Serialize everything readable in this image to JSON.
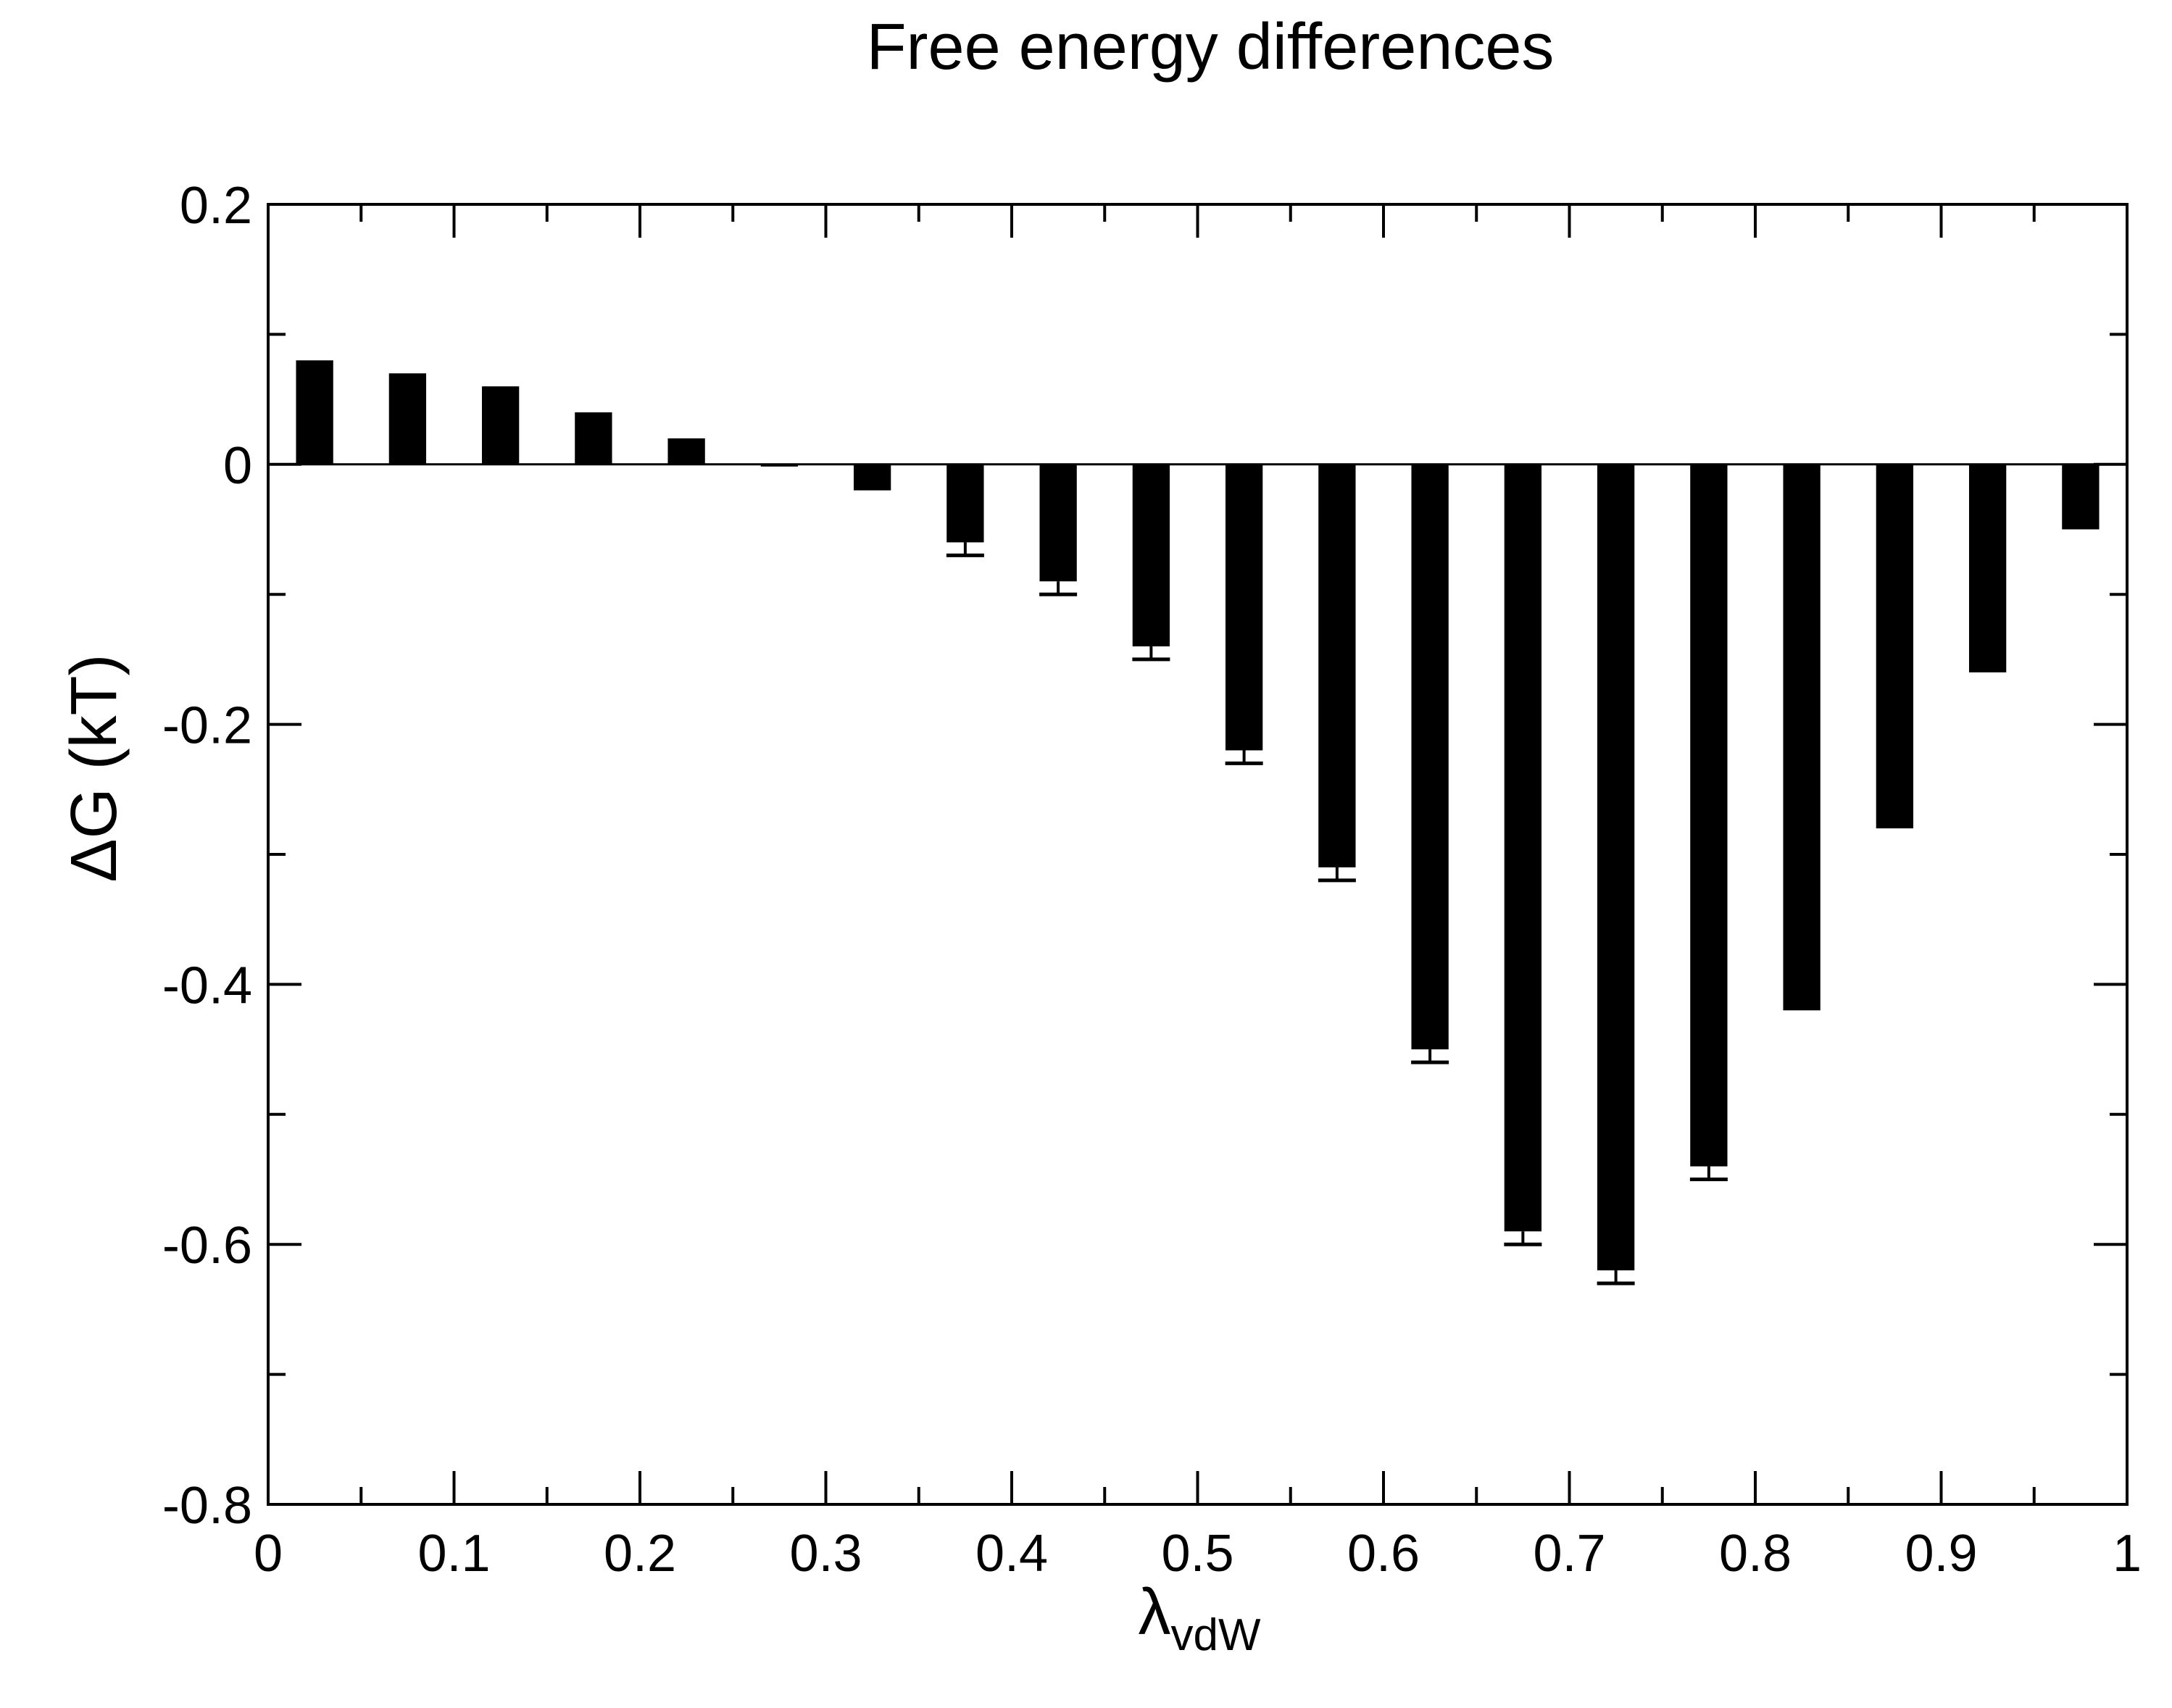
{
  "chart_data": {
    "type": "bar",
    "title": "Free energy differences",
    "xlabel_main": "λ",
    "xlabel_sub": "vdW",
    "ylabel": "ΔG (kT)",
    "xlim": [
      0,
      1
    ],
    "ylim": [
      -0.8,
      0.2
    ],
    "x_major_ticks": [
      0,
      0.1,
      0.2,
      0.3,
      0.4,
      0.5,
      0.6,
      0.7,
      0.8,
      0.9,
      1
    ],
    "x_tick_labels": [
      "0",
      "0.1",
      "0.2",
      "0.3",
      "0.4",
      "0.5",
      "0.6",
      "0.7",
      "0.8",
      "0.9",
      "1"
    ],
    "x_minor_step": 0.05,
    "y_major_ticks": [
      0.2,
      0,
      -0.2,
      -0.4,
      -0.6,
      -0.8
    ],
    "y_tick_labels": [
      "0.2",
      "0",
      "-0.2",
      "-0.4",
      "-0.6",
      "-0.8"
    ],
    "y_minor_step": 0.1,
    "bar_width_data": 0.02,
    "bar_color": "#000000",
    "x": [
      0.025,
      0.075,
      0.125,
      0.175,
      0.225,
      0.275,
      0.325,
      0.375,
      0.425,
      0.475,
      0.525,
      0.575,
      0.625,
      0.675,
      0.725,
      0.775,
      0.825,
      0.875,
      0.925,
      0.975
    ],
    "values": [
      0.08,
      0.07,
      0.06,
      0.04,
      0.02,
      0.0,
      -0.02,
      -0.06,
      -0.09,
      -0.14,
      -0.22,
      -0.31,
      -0.45,
      -0.59,
      -0.62,
      -0.54,
      -0.42,
      -0.28,
      -0.16,
      -0.05
    ],
    "errors": [
      0,
      0,
      0,
      0,
      0,
      0,
      0,
      0.01,
      0.01,
      0.01,
      0.01,
      0.01,
      0.01,
      0.01,
      0.01,
      0.01,
      0,
      0,
      0,
      0
    ]
  }
}
